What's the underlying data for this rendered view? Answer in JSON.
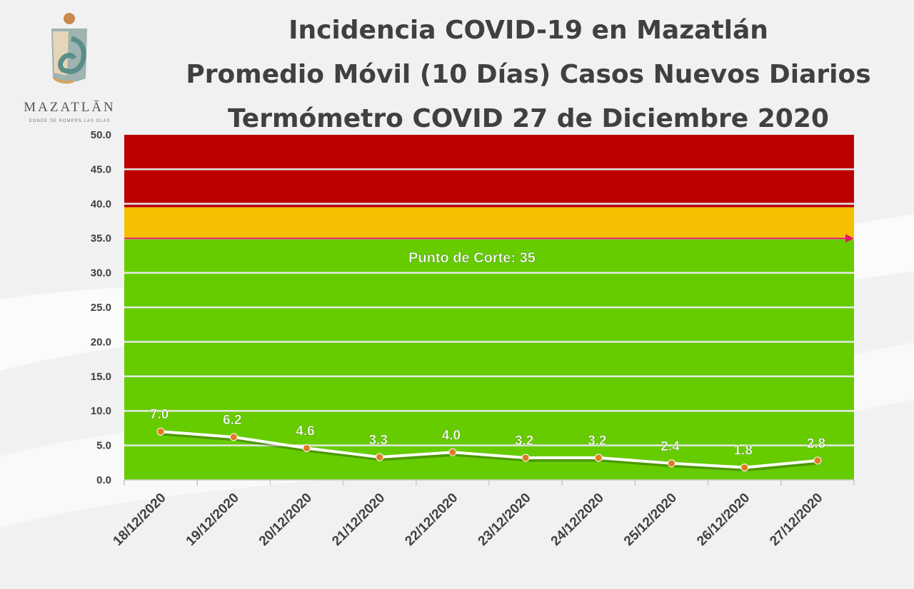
{
  "header": {
    "logo_text": "MAZATLĀN",
    "logo_tagline": "DONDE SE ROMPEN LAS OLAS",
    "title_lines": [
      "Incidencia COVID-19 en Mazatlán",
      "Promedio Móvil (10 Días) Casos Nuevos Diarios",
      "Termómetro COVID 27 de Diciembre 2020"
    ]
  },
  "colors": {
    "red_zone": "#bb0000",
    "yellow_zone": "#f6c000",
    "green_zone": "#66cc00",
    "line": "#ffffff",
    "marker": "#e07b20",
    "cutoff_line": "#e8175d"
  },
  "chart_data": {
    "type": "line",
    "title": "",
    "xlabel": "",
    "ylabel": "",
    "ylim": [
      0,
      50
    ],
    "y_ticks": [
      "0.0",
      "5.0",
      "10.0",
      "15.0",
      "20.0",
      "25.0",
      "30.0",
      "35.0",
      "40.0",
      "45.0",
      "50.0"
    ],
    "grid": true,
    "categories": [
      "18/12/2020",
      "19/12/2020",
      "20/12/2020",
      "21/12/2020",
      "22/12/2020",
      "23/12/2020",
      "24/12/2020",
      "25/12/2020",
      "26/12/2020",
      "27/12/2020"
    ],
    "values": [
      7.0,
      6.2,
      4.6,
      3.3,
      4.0,
      3.2,
      3.2,
      2.4,
      1.8,
      2.8
    ],
    "data_labels": [
      "7.0",
      "6.2",
      "4.6",
      "3.3",
      "4.0",
      "3.2",
      "3.2",
      "2.4",
      "1.8",
      "2.8"
    ],
    "bands": [
      {
        "zone": "green",
        "from": 0,
        "to": 35
      },
      {
        "zone": "yellow",
        "from": 35,
        "to": 39.5
      },
      {
        "zone": "red",
        "from": 39.5,
        "to": 50
      }
    ],
    "cutoff": {
      "value": 35,
      "label": "Punto de Corte: 35"
    }
  }
}
